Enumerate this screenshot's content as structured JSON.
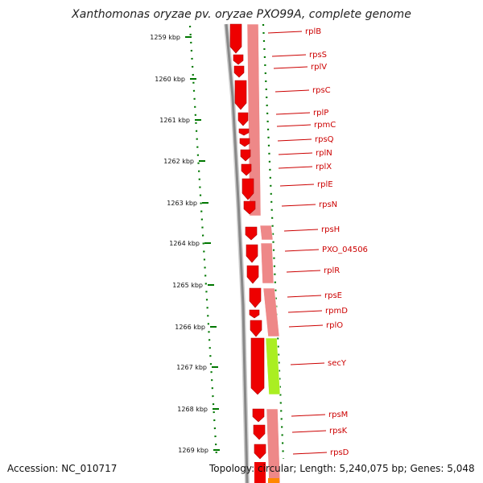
{
  "title": "Xanthomonas oryzae pv. oryzae PXO99A, complete genome",
  "footer": {
    "accession": "Accession: NC_010717",
    "summary": "Topology: circular; Length: 5,240,075 bp; Genes: 5,048"
  },
  "ticks": [
    "1259 kbp",
    "1260 kbp",
    "1261 kbp",
    "1262 kbp",
    "1263 kbp",
    "1264 kbp",
    "1265 kbp",
    "1266 kbp",
    "1267 kbp",
    "1268 kbp",
    "1269 kbp"
  ],
  "genes": [
    {
      "name": "rplB"
    },
    {
      "name": "rpsS"
    },
    {
      "name": "rplV"
    },
    {
      "name": "rpsC"
    },
    {
      "name": "rplP"
    },
    {
      "name": "rpmC"
    },
    {
      "name": "rpsQ"
    },
    {
      "name": "rplN"
    },
    {
      "name": "rplX"
    },
    {
      "name": "rplE"
    },
    {
      "name": "rpsN"
    },
    {
      "name": "rpsH"
    },
    {
      "name": "PXO_04506"
    },
    {
      "name": "rplR"
    },
    {
      "name": "rpsE"
    },
    {
      "name": "rpmD"
    },
    {
      "name": "rplO"
    },
    {
      "name": "secY"
    },
    {
      "name": "rpsM"
    },
    {
      "name": "rpsK"
    },
    {
      "name": "rpsD"
    }
  ],
  "colors": {
    "gene": "#ee0000",
    "gene_light": "#ee8888",
    "secY_light": "#aaee22",
    "label": "#cc0000",
    "tick": "#007700",
    "backbone": "#888888"
  }
}
